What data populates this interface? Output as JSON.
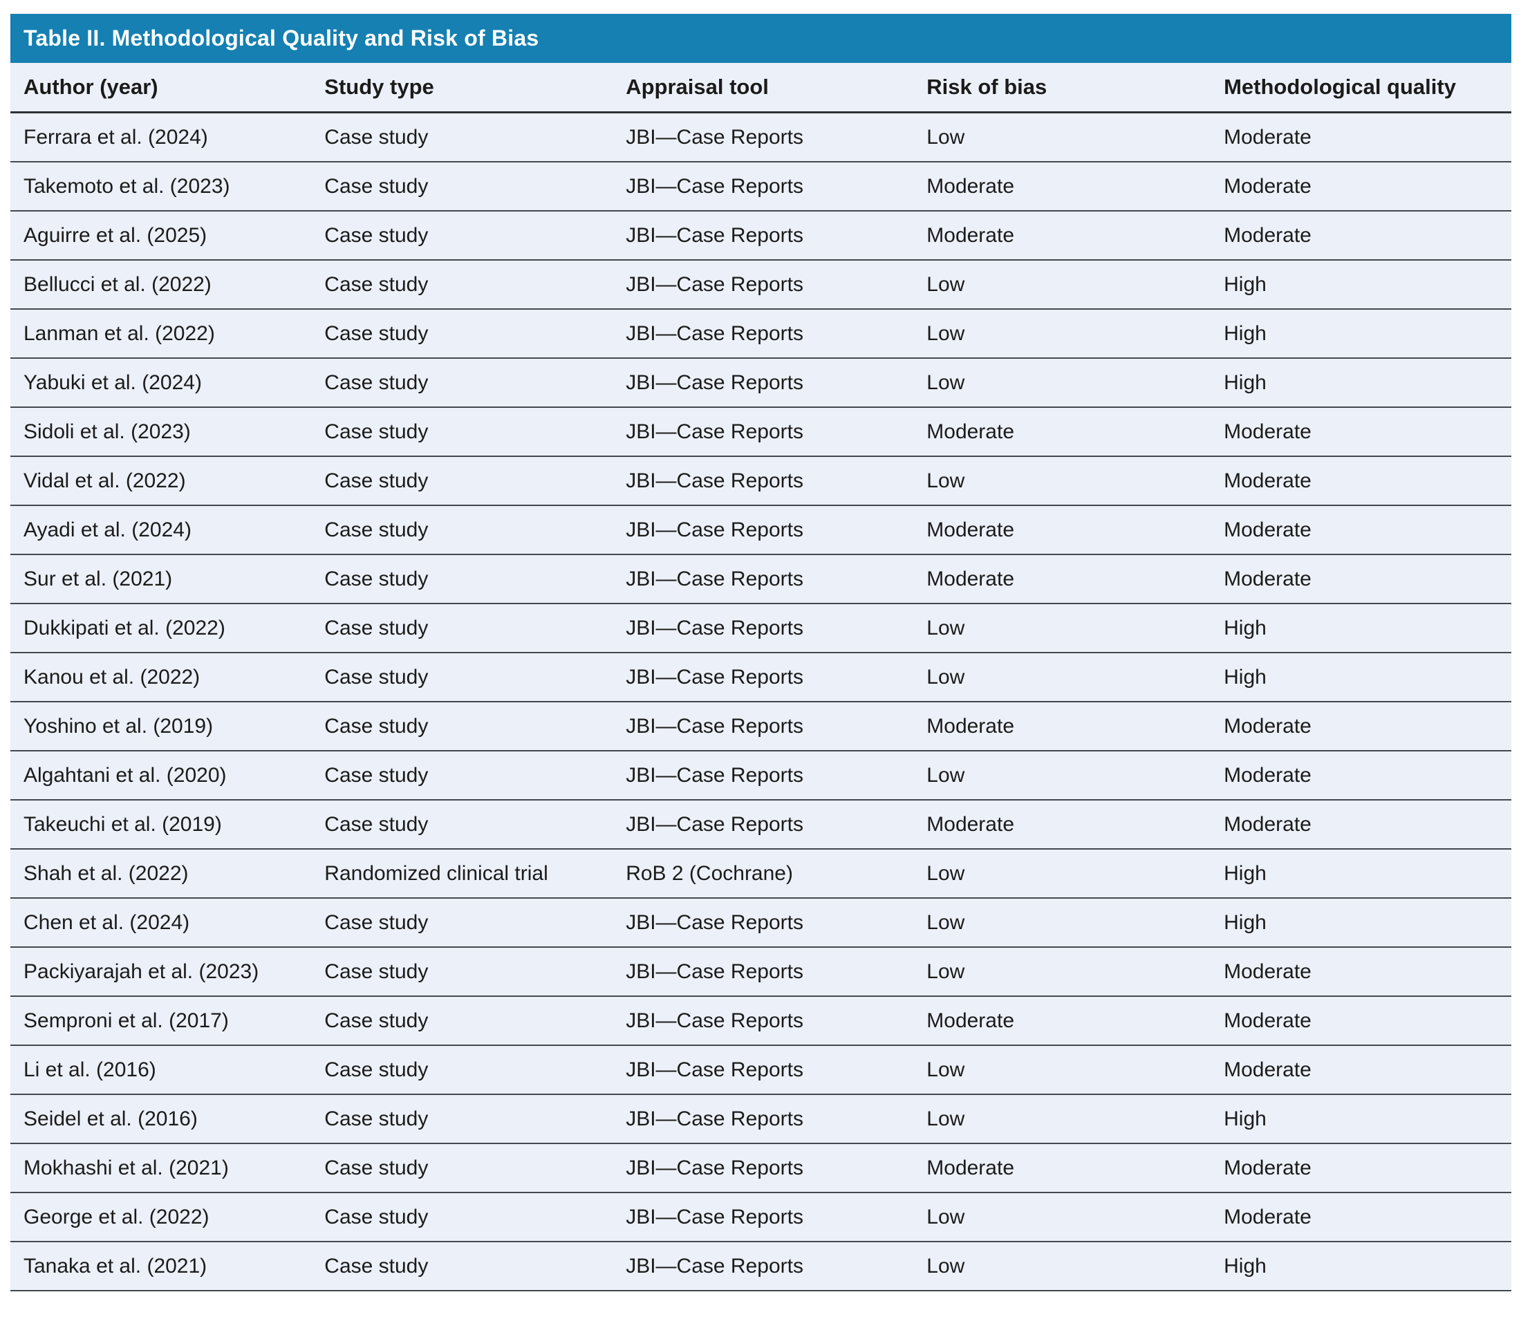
{
  "table": {
    "title": "Table II. Methodological Quality and Risk of Bias",
    "columns": [
      "Author (year)",
      "Study type",
      "Appraisal tool",
      "Risk of bias",
      "Methodological quality"
    ],
    "rows": [
      {
        "author": "Ferrara et al. (2024)",
        "study_type": "Case study",
        "appraisal_tool": "JBI—Case Reports",
        "risk_of_bias": "Low",
        "methodological_quality": "Moderate"
      },
      {
        "author": "Takemoto et al. (2023)",
        "study_type": "Case study",
        "appraisal_tool": "JBI—Case Reports",
        "risk_of_bias": "Moderate",
        "methodological_quality": "Moderate"
      },
      {
        "author": "Aguirre et al. (2025)",
        "study_type": "Case study",
        "appraisal_tool": "JBI—Case Reports",
        "risk_of_bias": "Moderate",
        "methodological_quality": "Moderate"
      },
      {
        "author": "Bellucci et al. (2022)",
        "study_type": "Case study",
        "appraisal_tool": "JBI—Case Reports",
        "risk_of_bias": "Low",
        "methodological_quality": "High"
      },
      {
        "author": "Lanman et al. (2022)",
        "study_type": "Case study",
        "appraisal_tool": "JBI—Case Reports",
        "risk_of_bias": "Low",
        "methodological_quality": "High"
      },
      {
        "author": "Yabuki et al. (2024)",
        "study_type": "Case study",
        "appraisal_tool": "JBI—Case Reports",
        "risk_of_bias": "Low",
        "methodological_quality": "High"
      },
      {
        "author": "Sidoli et al. (2023)",
        "study_type": "Case study",
        "appraisal_tool": "JBI—Case Reports",
        "risk_of_bias": "Moderate",
        "methodological_quality": "Moderate"
      },
      {
        "author": "Vidal et al. (2022)",
        "study_type": "Case study",
        "appraisal_tool": "JBI—Case Reports",
        "risk_of_bias": "Low",
        "methodological_quality": "Moderate"
      },
      {
        "author": "Ayadi et al. (2024)",
        "study_type": "Case study",
        "appraisal_tool": "JBI—Case Reports",
        "risk_of_bias": "Moderate",
        "methodological_quality": "Moderate"
      },
      {
        "author": "Sur et al. (2021)",
        "study_type": "Case study",
        "appraisal_tool": "JBI—Case Reports",
        "risk_of_bias": "Moderate",
        "methodological_quality": "Moderate"
      },
      {
        "author": "Dukkipati et al. (2022)",
        "study_type": "Case study",
        "appraisal_tool": "JBI—Case Reports",
        "risk_of_bias": "Low",
        "methodological_quality": "High"
      },
      {
        "author": "Kanou et al. (2022)",
        "study_type": "Case study",
        "appraisal_tool": "JBI—Case Reports",
        "risk_of_bias": "Low",
        "methodological_quality": "High"
      },
      {
        "author": "Yoshino et al. (2019)",
        "study_type": "Case study",
        "appraisal_tool": "JBI—Case Reports",
        "risk_of_bias": "Moderate",
        "methodological_quality": "Moderate"
      },
      {
        "author": "Algahtani et al. (2020)",
        "study_type": "Case study",
        "appraisal_tool": "JBI—Case Reports",
        "risk_of_bias": "Low",
        "methodological_quality": "Moderate"
      },
      {
        "author": "Takeuchi et al. (2019)",
        "study_type": "Case study",
        "appraisal_tool": "JBI—Case Reports",
        "risk_of_bias": "Moderate",
        "methodological_quality": "Moderate"
      },
      {
        "author": "Shah et al. (2022)",
        "study_type": "Randomized clinical trial",
        "appraisal_tool": "RoB 2 (Cochrane)",
        "risk_of_bias": "Low",
        "methodological_quality": "High"
      },
      {
        "author": "Chen et al. (2024)",
        "study_type": "Case study",
        "appraisal_tool": "JBI—Case Reports",
        "risk_of_bias": "Low",
        "methodological_quality": "High"
      },
      {
        "author": "Packiyarajah et al. (2023)",
        "study_type": "Case study",
        "appraisal_tool": "JBI—Case Reports",
        "risk_of_bias": "Low",
        "methodological_quality": "Moderate"
      },
      {
        "author": "Semproni et al. (2017)",
        "study_type": "Case study",
        "appraisal_tool": "JBI—Case Reports",
        "risk_of_bias": "Moderate",
        "methodological_quality": "Moderate"
      },
      {
        "author": "Li et al. (2016)",
        "study_type": "Case study",
        "appraisal_tool": "JBI—Case Reports",
        "risk_of_bias": "Low",
        "methodological_quality": "Moderate"
      },
      {
        "author": "Seidel et al. (2016)",
        "study_type": "Case study",
        "appraisal_tool": "JBI—Case Reports",
        "risk_of_bias": "Low",
        "methodological_quality": "High"
      },
      {
        "author": "Mokhashi et al. (2021)",
        "study_type": "Case study",
        "appraisal_tool": "JBI—Case Reports",
        "risk_of_bias": "Moderate",
        "methodological_quality": "Moderate"
      },
      {
        "author": "George et al. (2022)",
        "study_type": "Case study",
        "appraisal_tool": "JBI—Case Reports",
        "risk_of_bias": "Low",
        "methodological_quality": "Moderate"
      },
      {
        "author": "Tanaka et al. (2021)",
        "study_type": "Case study",
        "appraisal_tool": "JBI—Case Reports",
        "risk_of_bias": "Low",
        "methodological_quality": "High"
      }
    ]
  },
  "colors": {
    "title_bar": "#1580b1",
    "title_text": "#ffffff",
    "row_background": "#ecf0f8",
    "divider": "#43474e",
    "body_text": "#1b1b1b"
  }
}
